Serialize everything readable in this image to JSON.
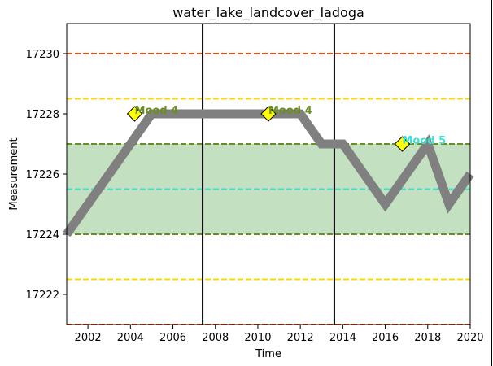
{
  "chart_data": {
    "type": "line",
    "title": "water_lake_landcover_ladoga",
    "xlabel": "Time",
    "ylabel": "Measurement",
    "xlim": [
      2001,
      2020
    ],
    "ylim": [
      17221,
      17231
    ],
    "xticks": [
      2002,
      2004,
      2006,
      2008,
      2010,
      2012,
      2014,
      2016,
      2018,
      2020
    ],
    "yticks": [
      17222,
      17224,
      17226,
      17228,
      17230
    ],
    "grid": false,
    "series": [
      {
        "color": "#808080",
        "x": [
          2001,
          2002,
          2003,
          2004,
          2005,
          2006,
          2007,
          2008,
          2009,
          2010,
          2011,
          2012,
          2013,
          2014,
          2015,
          2016,
          2017,
          2018,
          2019,
          2020
        ],
        "y": [
          17224,
          17225,
          17226,
          17227,
          17228,
          17228,
          17228,
          17228,
          17228,
          17228,
          17228,
          17228,
          17227,
          17227,
          17226,
          17225,
          17226,
          17227,
          17225,
          17226
        ]
      }
    ],
    "band": {
      "y0": 17224,
      "y1": 17227,
      "fill": "#c3e0c0",
      "edge_color": "#6b8e23"
    },
    "hlines": [
      {
        "y": 17230,
        "color": "#e8501a"
      },
      {
        "y": 17228.5,
        "color": "#ffd700"
      },
      {
        "y": 17225.5,
        "color": "#40e0d0"
      },
      {
        "y": 17222.5,
        "color": "#ffd700"
      },
      {
        "y": 17221,
        "color": "#e8501a"
      }
    ],
    "vlines": [
      2007.4,
      2013.6
    ],
    "annotations": [
      {
        "x": 2004.2,
        "y": 17228,
        "text": "Mood 4",
        "color": "#6b8e23"
      },
      {
        "x": 2010.5,
        "y": 17228,
        "text": "Mood 4",
        "color": "#6b8e23"
      },
      {
        "x": 2016.8,
        "y": 17227,
        "text": "Mood 5",
        "color": "#40e0d0"
      }
    ]
  }
}
